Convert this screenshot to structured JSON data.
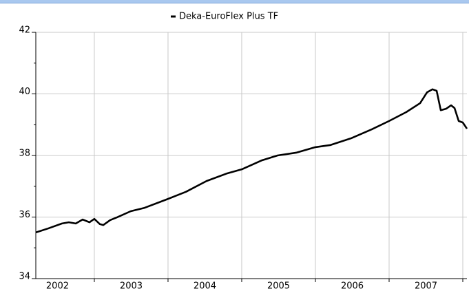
{
  "chart_data": {
    "type": "line",
    "x": [
      2002.206,
      2002.374,
      2002.561,
      2002.654,
      2002.748,
      2002.841,
      2002.935,
      2003.0,
      2003.075,
      2003.121,
      2003.215,
      2003.308,
      2003.495,
      2003.682,
      2004.0,
      2004.243,
      2004.523,
      2004.804,
      2005.0,
      2005.271,
      2005.486,
      2005.738,
      2006.0,
      2006.206,
      2006.486,
      2006.766,
      2007.0,
      2007.234,
      2007.421,
      2007.514,
      2007.589,
      2007.645,
      2007.701,
      2007.776,
      2007.841,
      2007.888,
      2007.944,
      2008.0,
      2008.056
    ],
    "series": [
      {
        "name": "Deka-EuroFlex Plus TF",
        "color": "#000000",
        "values": [
          35.5,
          35.63,
          35.79,
          35.83,
          35.79,
          35.92,
          35.83,
          35.94,
          35.77,
          35.74,
          35.9,
          35.99,
          36.19,
          36.3,
          36.59,
          36.82,
          37.17,
          37.42,
          37.55,
          37.84,
          38.0,
          38.09,
          38.27,
          38.34,
          38.56,
          38.85,
          39.12,
          39.41,
          39.7,
          40.05,
          40.15,
          40.1,
          39.47,
          39.52,
          39.63,
          39.54,
          39.12,
          39.07,
          38.87
        ]
      }
    ],
    "xlim": [
      2002.206,
      2008.056
    ],
    "xticks": [
      {
        "value": 2002.5,
        "label": "2002"
      },
      {
        "value": 2003.5,
        "label": "2003"
      },
      {
        "value": 2004.5,
        "label": "2004"
      },
      {
        "value": 2005.5,
        "label": "2005"
      },
      {
        "value": 2006.5,
        "label": "2006"
      },
      {
        "value": 2007.5,
        "label": "2007"
      }
    ],
    "xgrid": [
      2003,
      2004,
      2005,
      2006,
      2007,
      2008
    ],
    "ylim": [
      34,
      42
    ],
    "yticks": [
      34,
      36,
      38,
      40,
      42
    ],
    "yminor": [
      35,
      37,
      39,
      41
    ],
    "grid": true,
    "legend": "top"
  }
}
